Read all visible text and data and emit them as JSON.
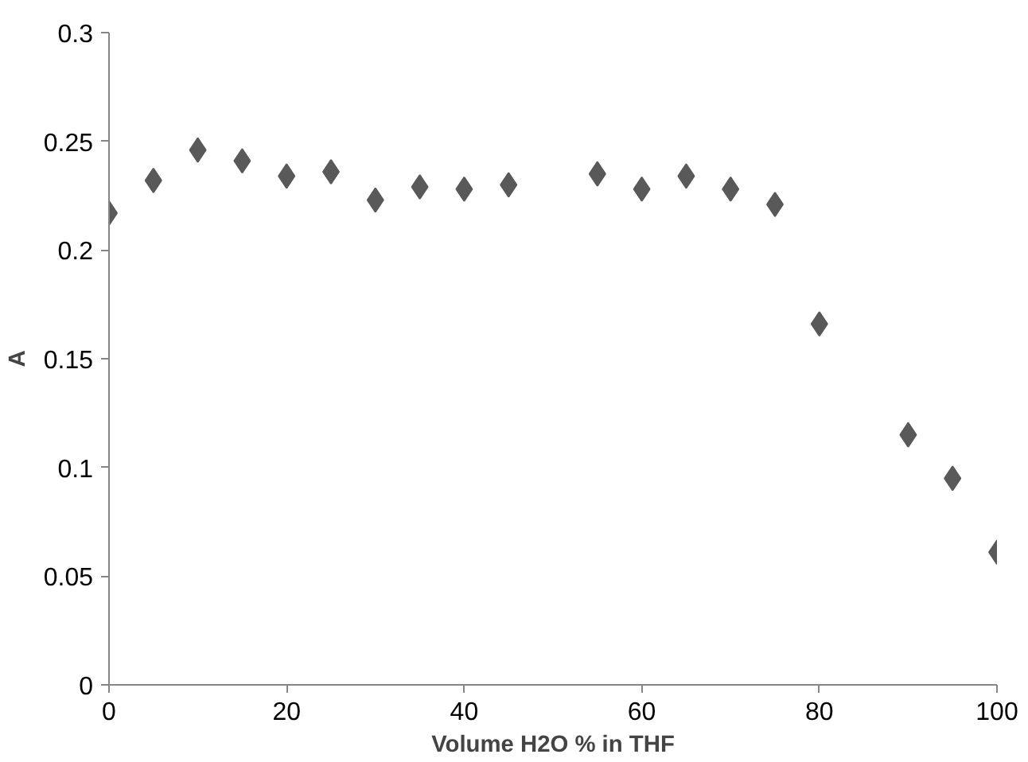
{
  "chart_data": {
    "type": "scatter",
    "xlabel": "Volume H2O % in THF",
    "ylabel": "A",
    "x": [
      0,
      5,
      10,
      15,
      20,
      25,
      30,
      35,
      40,
      45,
      55,
      60,
      65,
      70,
      75,
      80,
      90,
      95,
      100
    ],
    "series": [
      {
        "color": "#595959",
        "values": [
          0.217,
          0.232,
          0.246,
          0.241,
          0.234,
          0.236,
          0.223,
          0.229,
          0.228,
          0.23,
          0.235,
          0.228,
          0.234,
          0.228,
          0.221,
          0.166,
          0.115,
          0.095,
          0.061
        ]
      }
    ],
    "xlim": [
      0,
      100
    ],
    "xticks": [
      0,
      20,
      40,
      60,
      80,
      100
    ],
    "ylim": [
      0,
      0.3
    ],
    "yticks": [
      0,
      {
        "value": 0.05,
        "label": "0.05"
      },
      {
        "value": 0.1,
        "label": "0.1"
      },
      {
        "value": 0.15,
        "label": "0.15"
      },
      {
        "value": 0.2,
        "label": "0.2"
      },
      {
        "value": 0.25,
        "label": "0.25"
      },
      {
        "value": 0.3,
        "label": "0.3"
      }
    ],
    "marker": "diamond"
  }
}
